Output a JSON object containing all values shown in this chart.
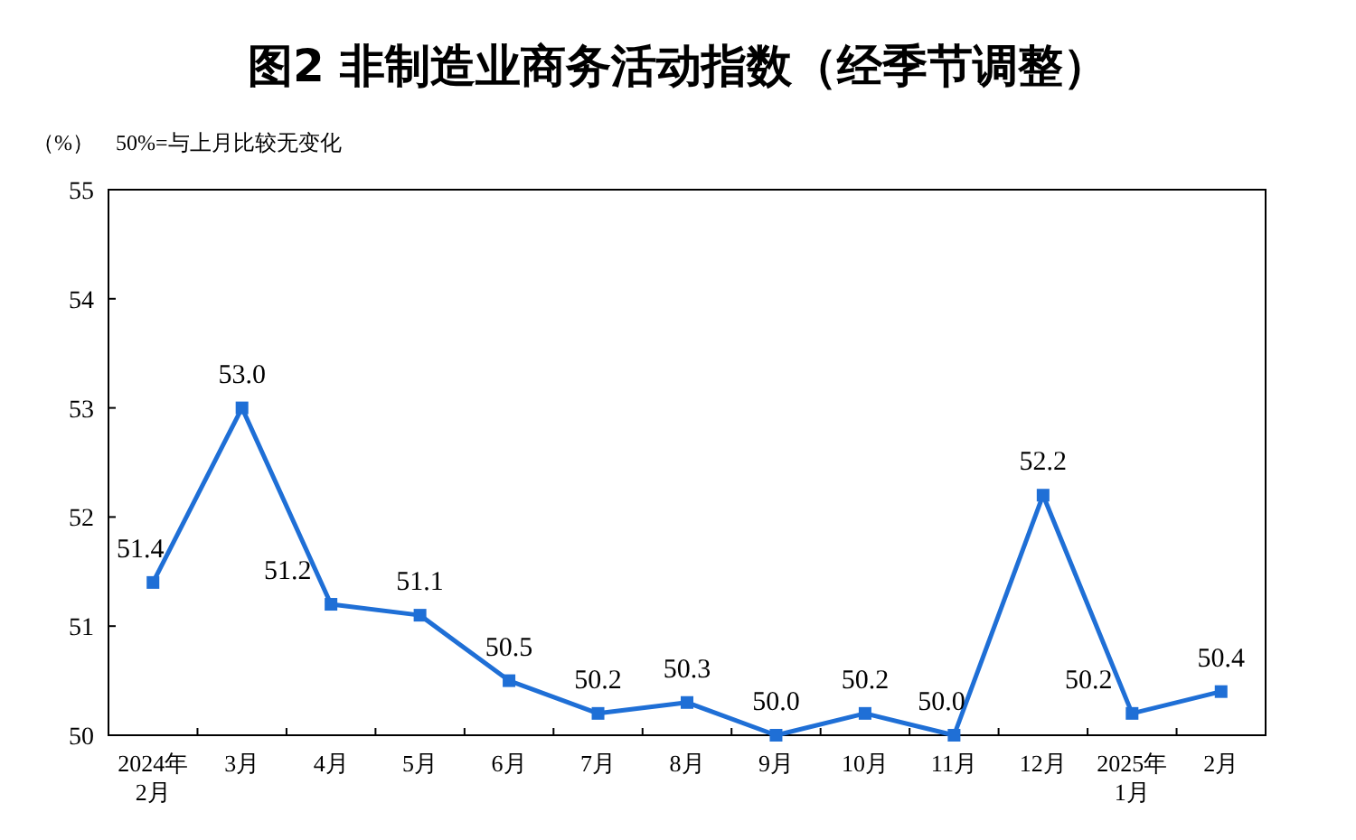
{
  "chart_data": {
    "type": "line",
    "title": "图2  非制造业商务活动指数（经季节调整）",
    "ylabel": "（%）",
    "annotations": [
      "50%=与上月比较无变化"
    ],
    "categories": [
      "2024年\n2月",
      "3月",
      "4月",
      "5月",
      "6月",
      "7月",
      "8月",
      "9月",
      "10月",
      "11月",
      "12月",
      "2025年\n1月",
      "2月"
    ],
    "series": [
      {
        "color": "#1f6fd6",
        "values": [
          51.4,
          53.0,
          51.2,
          51.1,
          50.5,
          50.2,
          50.3,
          50.0,
          50.2,
          50.0,
          52.2,
          50.2,
          50.4
        ],
        "value_labels": [
          "51.4",
          "53.0",
          "51.2",
          "51.1",
          "50.5",
          "50.2",
          "50.3",
          "50.0",
          "50.2",
          "50.0",
          "52.2",
          "50.2",
          "50.4"
        ]
      }
    ],
    "ylim": [
      50,
      55
    ],
    "yticks": [
      50,
      51,
      52,
      53,
      54,
      55
    ],
    "marker": "square",
    "line_style": "solid",
    "grid": false
  }
}
